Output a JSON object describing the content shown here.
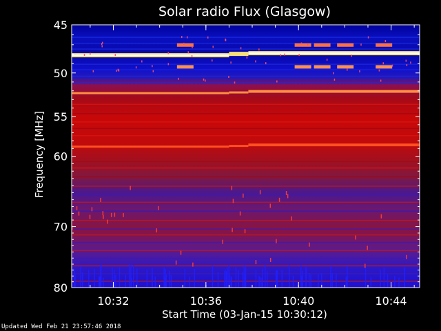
{
  "chart_data": {
    "type": "heatmap",
    "title": "Solar radio Flux (Glasgow)",
    "xlabel": "Start Time (03-Jan-15 10:30:12)",
    "ylabel": "Frequency [MHz]",
    "x_range_minutes": [
      "10:30:12",
      "10:45:14"
    ],
    "x_ticks": [
      "10:32",
      "10:36",
      "10:40",
      "10:44"
    ],
    "y_ticks": [
      45,
      50,
      55,
      60,
      70,
      80
    ],
    "ylim": [
      45,
      80
    ],
    "y_scale": "log",
    "colormap": "blue-purple-red-orange-yellow-white",
    "features": {
      "intense_band_mhz": 48.1,
      "bright_bands_mhz": [
        52.3,
        58.8
      ],
      "upper_region": "blue (45-52 MHz)",
      "middle_region": "red (52-63 MHz)",
      "lower_region": "purple/red mix (63-80 MHz)",
      "data_break_times": [
        "10:37:00",
        "10:37:50"
      ]
    }
  },
  "footer": {
    "updated": "Updated Wed Feb 21 23:57:46 2018"
  },
  "colors": {
    "background": "#000000",
    "axes": "#ffffff",
    "text": "#ffffff"
  }
}
